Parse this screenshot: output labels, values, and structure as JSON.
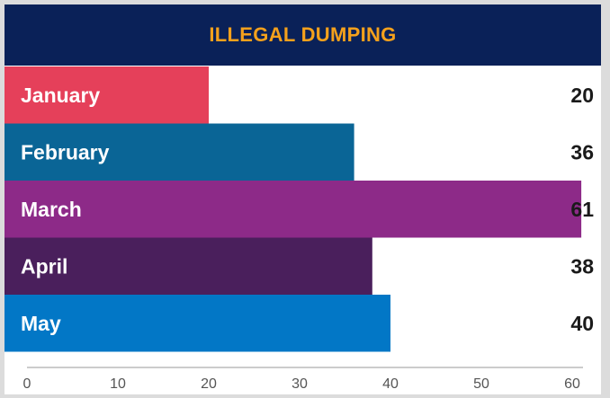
{
  "chart_data": {
    "type": "bar",
    "orientation": "horizontal",
    "title": "ILLEGAL DUMPING",
    "categories": [
      "January",
      "February",
      "March",
      "April",
      "May"
    ],
    "values": [
      20,
      36,
      61,
      38,
      40
    ],
    "colors": [
      "#e5405a",
      "#0a6596",
      "#8d2a88",
      "#4a1f5c",
      "#0277c6"
    ],
    "xlim": [
      0,
      60
    ],
    "xticks": [
      0,
      10,
      20,
      30,
      40,
      50,
      60
    ],
    "xlabel": "",
    "ylabel": "",
    "grid": false,
    "data_labels": [
      "20",
      "36",
      "61",
      "38",
      "40"
    ],
    "header_color": "#0a2158",
    "title_color": "#f5a11c"
  }
}
